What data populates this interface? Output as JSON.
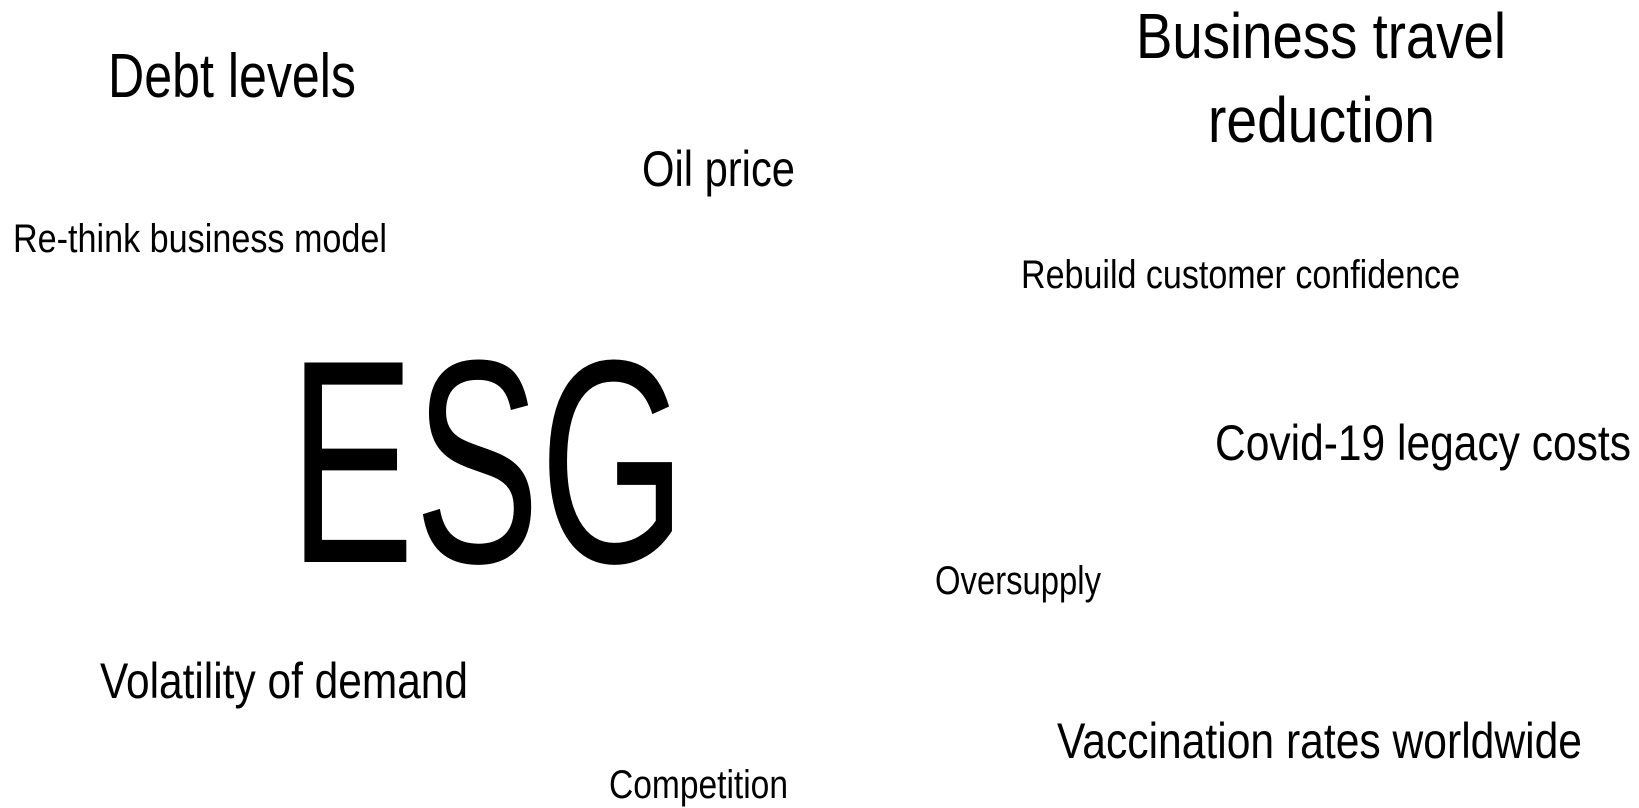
{
  "words": [
    "Debt levels",
    [
      "Business travel",
      "reduction"
    ],
    "Oil price",
    "Re-think business model",
    "Rebuild customer confidence",
    "ESG",
    "Covid-19 legacy costs",
    "Oversupply",
    "Volatility of demand",
    "Vaccination rates worldwide",
    "Competition"
  ]
}
